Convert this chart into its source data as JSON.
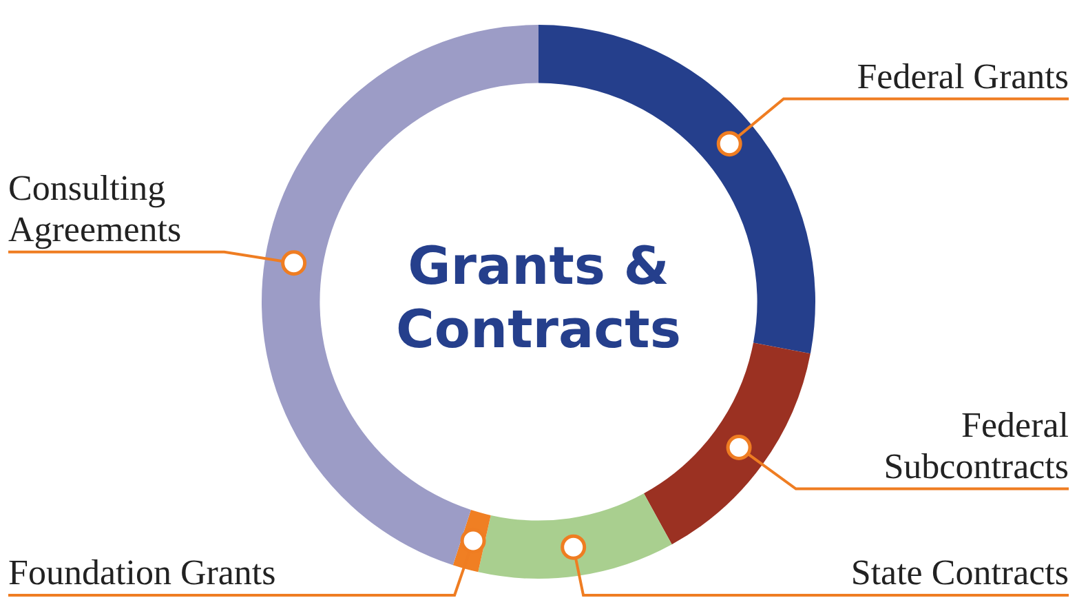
{
  "chart_data": {
    "type": "donut",
    "title": "Grants & Contracts",
    "categories": [
      "Federal Grants",
      "Federal Subcontracts",
      "State Contracts",
      "Foundation Grants",
      "Consulting Agreements"
    ],
    "values": [
      28,
      14,
      11.5,
      1.5,
      45
    ],
    "colors": [
      "#253f8c",
      "#9b3122",
      "#a9cf8f",
      "#f07f23",
      "#9c9cc6"
    ]
  }
}
